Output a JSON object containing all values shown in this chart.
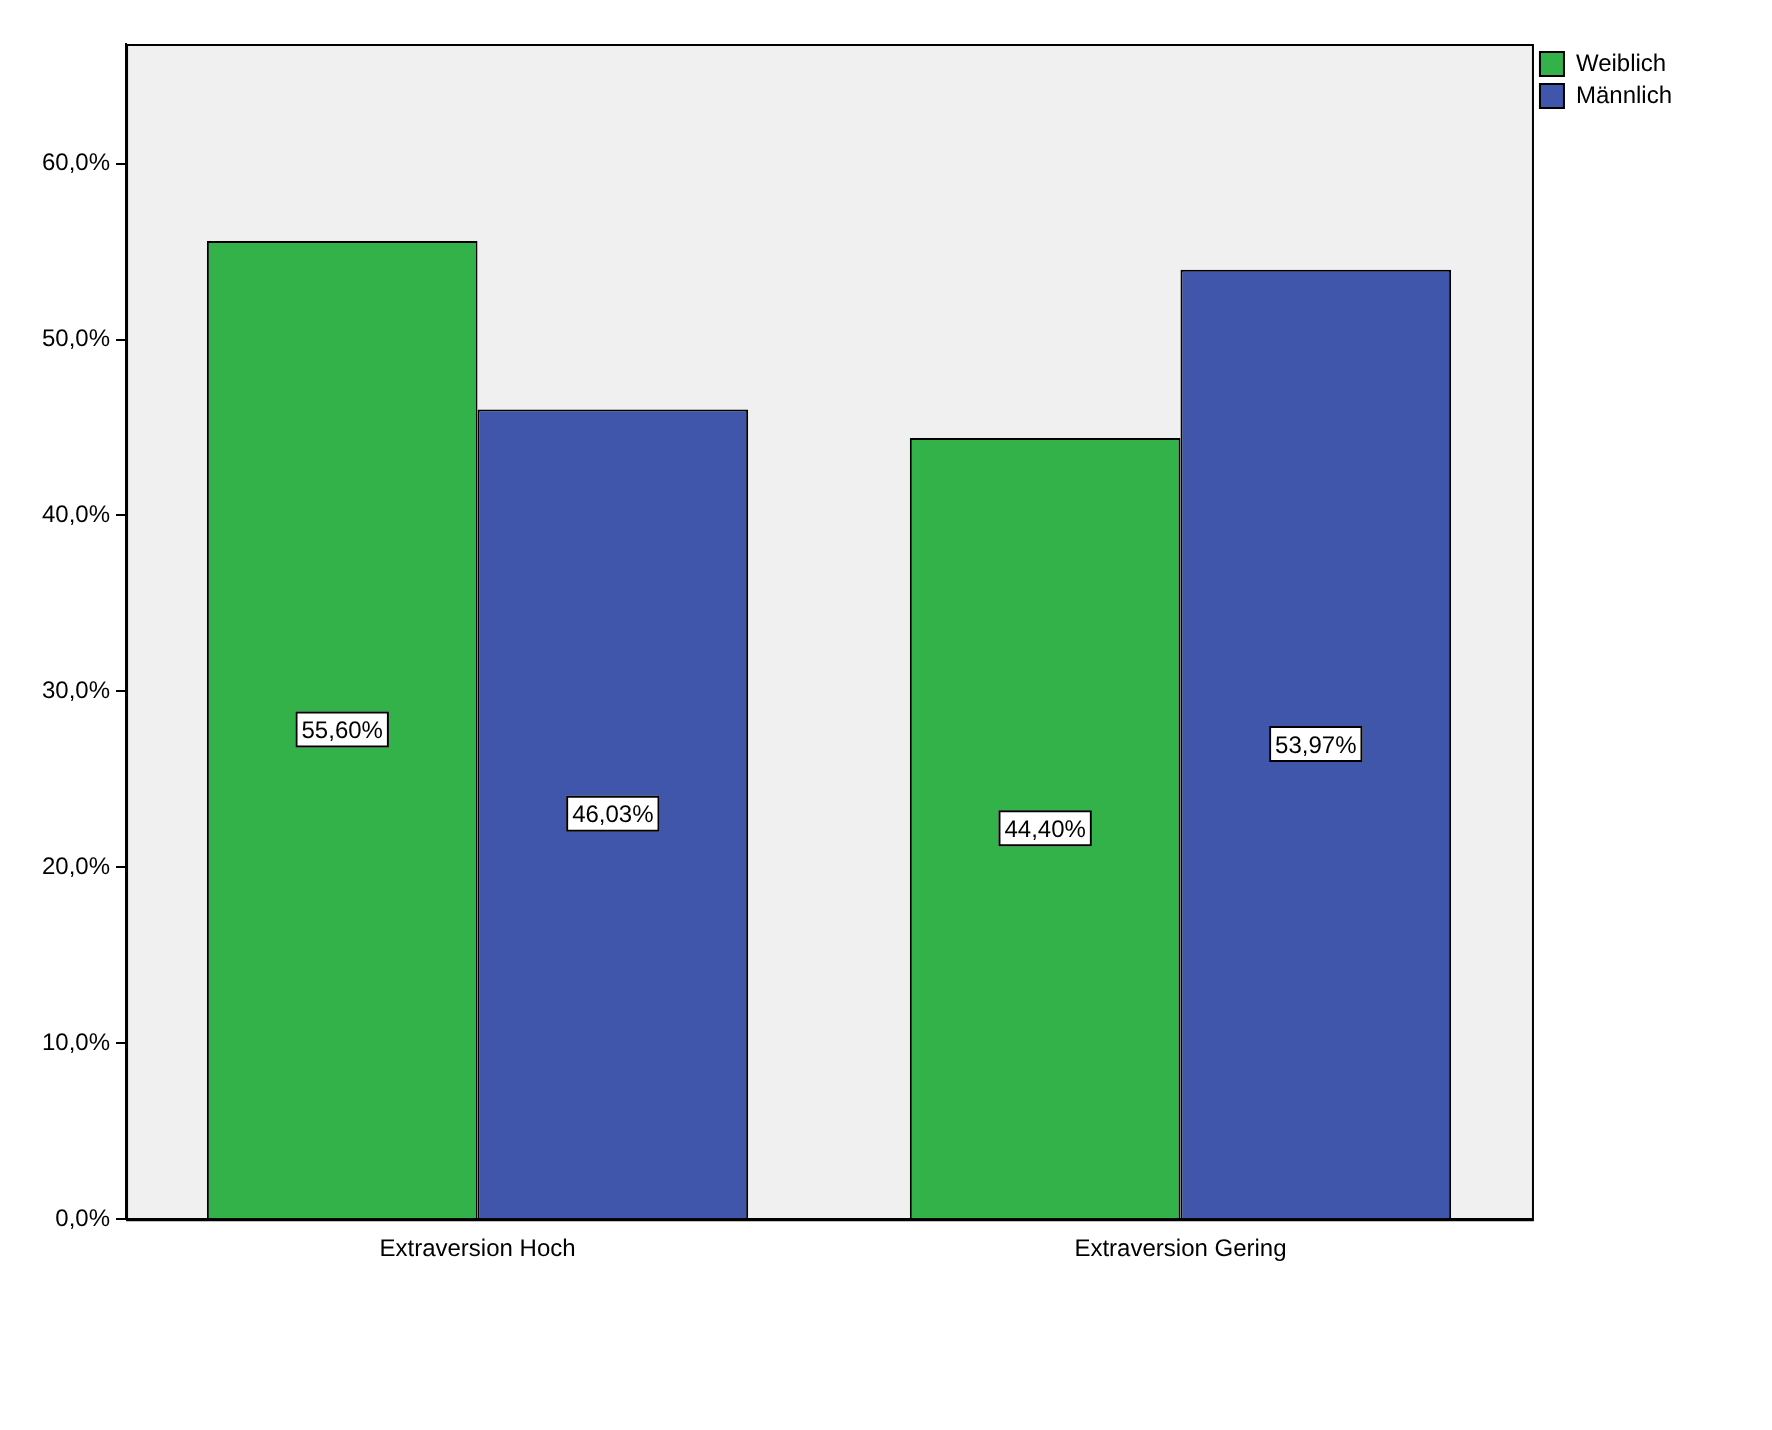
{
  "chart_data": {
    "type": "bar",
    "categories": [
      "Extraversion Hoch",
      "Extraversion Gering"
    ],
    "series": [
      {
        "name": "Weiblich",
        "color": "#33b24a",
        "values": [
          55.6,
          44.4
        ],
        "value_labels": [
          "55,60%",
          "44,40%"
        ]
      },
      {
        "name": "Männlich",
        "color": "#3f56ab",
        "values": [
          46.03,
          53.97
        ],
        "value_labels": [
          "46,03%",
          "53,97%"
        ]
      }
    ],
    "ylim": [
      0,
      66.8
    ],
    "yticks": [
      {
        "value": 0,
        "label": "0,0%"
      },
      {
        "value": 10,
        "label": "10,0%"
      },
      {
        "value": 20,
        "label": "20,0%"
      },
      {
        "value": 30,
        "label": "30,0%"
      },
      {
        "value": 40,
        "label": "40,0%"
      },
      {
        "value": 50,
        "label": "50,0%"
      },
      {
        "value": 60,
        "label": "60,0%"
      }
    ],
    "legend": "top right"
  }
}
